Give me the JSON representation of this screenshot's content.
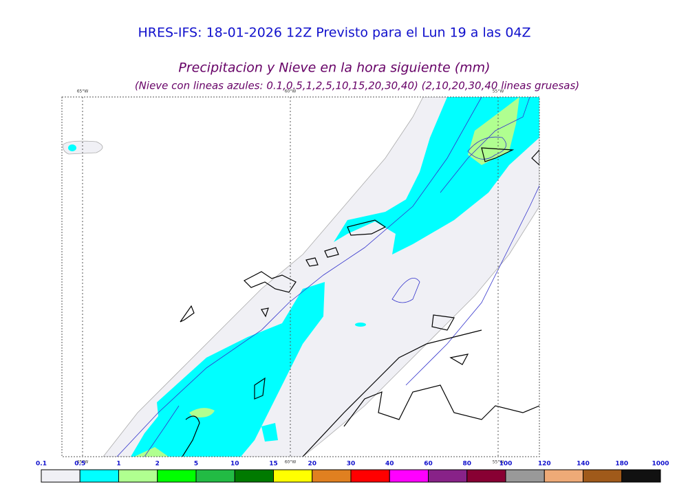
{
  "header": {
    "title": "HRES-IFS: 18-01-2026 12Z Previsto para el Lun 19 a las 04Z",
    "subtitle": "Precipitacion y Nieve en la hora siguiente (mm)",
    "note": "(Nieve con lineas azules: 0.1,0.5,1,2,5,10,15,20,30,40)  (2,10,20,30,40 lineas gruesas)"
  },
  "map": {
    "longitudes": [
      "65°W",
      "60°W",
      "55°W"
    ]
  },
  "legend": {
    "labels": [
      "0.1",
      "0.5",
      "1",
      "2",
      "5",
      "10",
      "15",
      "20",
      "30",
      "40",
      "60",
      "80",
      "100",
      "120",
      "140",
      "180",
      "1000"
    ],
    "colors": [
      "#f0f0f5",
      "#00ffff",
      "#b0ff90",
      "#00ff00",
      "#22bb44",
      "#007a00",
      "#ffff00",
      "#e08020",
      "#ff0000",
      "#ff00ff",
      "#882288",
      "#880033",
      "#999999",
      "#eeaa77",
      "#a05a1a",
      "#111111"
    ]
  }
}
